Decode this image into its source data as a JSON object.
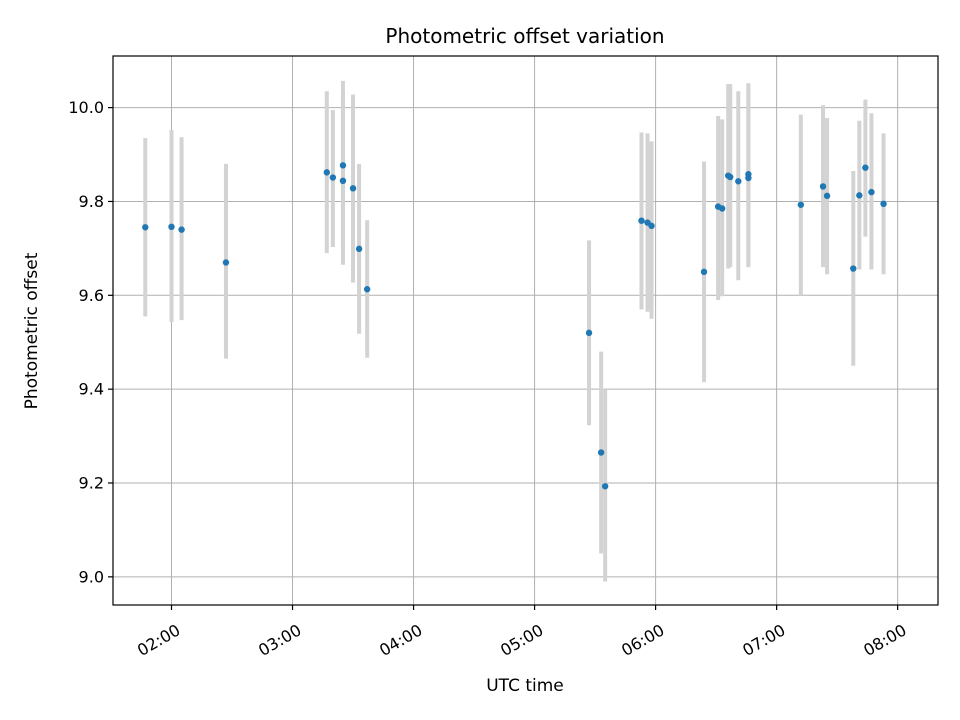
{
  "chart_data": {
    "type": "scatter",
    "title": "Photometric offset variation",
    "xlabel": "UTC time",
    "ylabel": "Photometric offset",
    "x_axis_type": "time",
    "xlim": [
      "01:31",
      "08:20"
    ],
    "ylim": [
      8.94,
      10.11
    ],
    "xticks": [
      "02:00",
      "03:00",
      "04:00",
      "05:00",
      "06:00",
      "07:00",
      "08:00"
    ],
    "yticks": [
      9.0,
      9.2,
      9.4,
      9.6,
      9.8,
      10.0
    ],
    "ytick_labels": [
      "9.0",
      "9.2",
      "9.4",
      "9.6",
      "9.8",
      "10.0"
    ],
    "grid": true,
    "colors": {
      "point": "#1f77b4",
      "errorbar": "#d3d3d3",
      "grid": "#b0b0b0"
    },
    "points": [
      {
        "x": "01:47",
        "y": 9.745,
        "lo": 9.555,
        "hi": 9.935
      },
      {
        "x": "02:00",
        "y": 9.746,
        "lo": 9.543,
        "hi": 9.952
      },
      {
        "x": "02:05",
        "y": 9.74,
        "lo": 9.547,
        "hi": 9.937
      },
      {
        "x": "02:27",
        "y": 9.67,
        "lo": 9.465,
        "hi": 9.88
      },
      {
        "x": "03:17",
        "y": 9.862,
        "lo": 9.69,
        "hi": 10.035
      },
      {
        "x": "03:20",
        "y": 9.851,
        "lo": 9.703,
        "hi": 9.995
      },
      {
        "x": "03:25",
        "y": 9.877,
        "lo": 9.693,
        "hi": 10.057
      },
      {
        "x": "03:25",
        "y": 9.844,
        "lo": 9.665,
        "hi": 10.03
      },
      {
        "x": "03:30",
        "y": 9.828,
        "lo": 9.627,
        "hi": 10.028
      },
      {
        "x": "03:33",
        "y": 9.699,
        "lo": 9.518,
        "hi": 9.88
      },
      {
        "x": "03:37",
        "y": 9.613,
        "lo": 9.467,
        "hi": 9.76
      },
      {
        "x": "05:27",
        "y": 9.52,
        "lo": 9.323,
        "hi": 9.717
      },
      {
        "x": "05:33",
        "y": 9.265,
        "lo": 9.05,
        "hi": 9.48
      },
      {
        "x": "05:35",
        "y": 9.193,
        "lo": 8.99,
        "hi": 9.4
      },
      {
        "x": "05:53",
        "y": 9.759,
        "lo": 9.57,
        "hi": 9.947
      },
      {
        "x": "05:56",
        "y": 9.755,
        "lo": 9.565,
        "hi": 9.945
      },
      {
        "x": "05:58",
        "y": 9.748,
        "lo": 9.55,
        "hi": 9.928
      },
      {
        "x": "06:24",
        "y": 9.65,
        "lo": 9.415,
        "hi": 9.885
      },
      {
        "x": "06:31",
        "y": 9.789,
        "lo": 9.59,
        "hi": 9.982
      },
      {
        "x": "06:33",
        "y": 9.785,
        "lo": 9.598,
        "hi": 9.975
      },
      {
        "x": "06:36",
        "y": 9.855,
        "lo": 9.657,
        "hi": 10.05
      },
      {
        "x": "06:37",
        "y": 9.852,
        "lo": 9.66,
        "hi": 10.05
      },
      {
        "x": "06:41",
        "y": 9.843,
        "lo": 9.632,
        "hi": 10.035
      },
      {
        "x": "06:46",
        "y": 9.858,
        "lo": 9.66,
        "hi": 10.052
      },
      {
        "x": "06:46",
        "y": 9.85,
        "lo": 9.66,
        "hi": 10.04
      },
      {
        "x": "07:12",
        "y": 9.793,
        "lo": 9.6,
        "hi": 9.985
      },
      {
        "x": "07:23",
        "y": 9.832,
        "lo": 9.66,
        "hi": 10.005
      },
      {
        "x": "07:25",
        "y": 9.812,
        "lo": 9.645,
        "hi": 9.978
      },
      {
        "x": "07:38",
        "y": 9.657,
        "lo": 9.45,
        "hi": 9.865
      },
      {
        "x": "07:41",
        "y": 9.813,
        "lo": 9.655,
        "hi": 9.972
      },
      {
        "x": "07:44",
        "y": 9.872,
        "lo": 9.725,
        "hi": 10.017
      },
      {
        "x": "07:47",
        "y": 9.82,
        "lo": 9.655,
        "hi": 9.988
      },
      {
        "x": "07:53",
        "y": 9.795,
        "lo": 9.645,
        "hi": 9.945
      }
    ]
  }
}
